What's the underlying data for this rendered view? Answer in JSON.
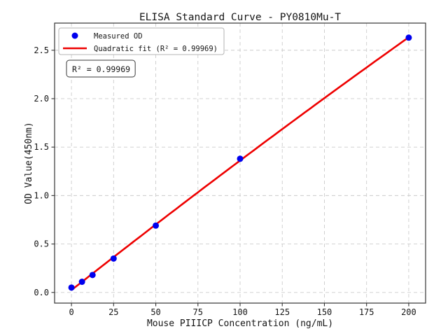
{
  "chart_data": {
    "type": "scatter",
    "title": "ELISA Standard Curve - PY0810Mu-T",
    "xlabel": "Mouse PIIICP Concentration (ng/mL)",
    "ylabel": "OD Value(450nm)",
    "xlim": [
      -10,
      210
    ],
    "ylim": [
      -0.11,
      2.78
    ],
    "x_ticks": [
      0,
      25,
      50,
      75,
      100,
      125,
      150,
      175,
      200
    ],
    "y_ticks": [
      0.0,
      0.5,
      1.0,
      1.5,
      2.0,
      2.5
    ],
    "grid": true,
    "legend_position": "upper-left",
    "annotation": "R² = 0.99969",
    "r_squared": 0.99969,
    "series": [
      {
        "name": "Measured OD",
        "type": "scatter",
        "color": "#0000ee",
        "x": [
          0,
          6.25,
          12.5,
          25,
          50,
          100,
          200
        ],
        "y": [
          0.05,
          0.11,
          0.18,
          0.35,
          0.69,
          1.38,
          2.63
        ]
      },
      {
        "name": "Quadratic fit (R² = 0.99969)",
        "type": "line",
        "color": "#ee0000",
        "fit": "quadratic",
        "fit_of_series": 0,
        "x_range": [
          0,
          200
        ]
      }
    ],
    "colors": {
      "grid": "#cccccc",
      "frame": "#333333",
      "tick": "#333333",
      "scatter": "#0000ee",
      "fit_line": "#ee0000"
    }
  }
}
